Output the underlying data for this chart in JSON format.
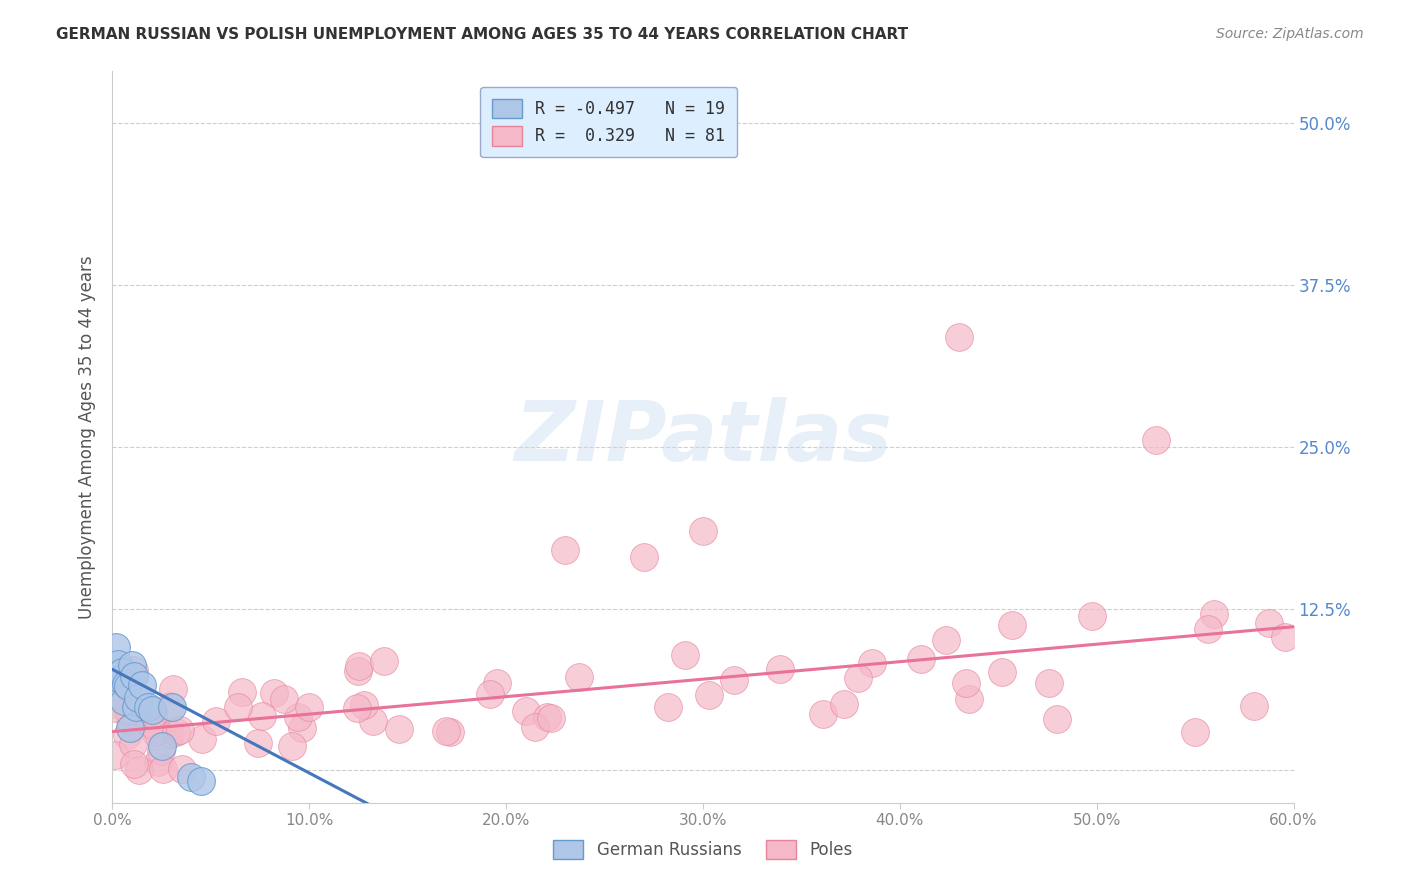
{
  "title": "GERMAN RUSSIAN VS POLISH UNEMPLOYMENT AMONG AGES 35 TO 44 YEARS CORRELATION CHART",
  "source": "Source: ZipAtlas.com",
  "ylabel": "Unemployment Among Ages 35 to 44 years",
  "xlim": [
    0.0,
    0.6
  ],
  "ylim": [
    -0.025,
    0.54
  ],
  "ytick_vals": [
    0.0,
    0.125,
    0.25,
    0.375,
    0.5
  ],
  "ytick_labels": [
    "",
    "12.5%",
    "25.0%",
    "37.5%",
    "50.0%"
  ],
  "xtick_vals": [
    0.0,
    0.1,
    0.2,
    0.3,
    0.4,
    0.5,
    0.6
  ],
  "xtick_labels": [
    "0.0%",
    "10.0%",
    "20.0%",
    "30.0%",
    "40.0%",
    "50.0%",
    "60.0%"
  ],
  "watermark": "ZIPatlas",
  "gr_color": "#aec6e8",
  "gr_edge": "#6699cc",
  "gr_line": "#4477bb",
  "po_color": "#f4b8c8",
  "po_edge": "#e8849a",
  "po_line": "#e8729a",
  "legend_bg": "#ddeeff",
  "legend_edge": "#99aacc",
  "background_color": "#ffffff",
  "grid_color": "#bbbbbb",
  "title_color": "#333333",
  "source_color": "#888888",
  "ylabel_color": "#555555",
  "ytick_color": "#5588cc",
  "xtick_color": "#888888"
}
